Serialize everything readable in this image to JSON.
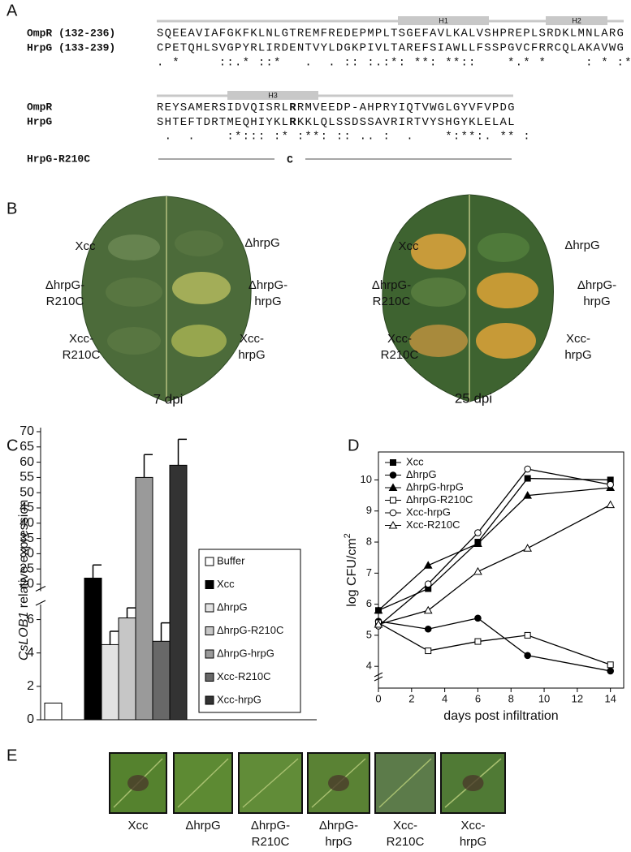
{
  "panel_labels": [
    "A",
    "B",
    "C",
    "D",
    "E"
  ],
  "panel_a": {
    "helices": [
      "H1",
      "H2",
      "H3"
    ],
    "block_1": {
      "ompr_label": "OmpR (132-236)",
      "ompr": "SQEEAVIAFGKFKLNLGTREMFREDEPMPLTSGEFAVLKALVSHPREPLSRDKLMNLARG",
      "hrpg_label": "HrpG (133-239)",
      "hrpg": "CPETQHLSVGPYRLIRDENTVYLDGKPIVLTAREFSIAWLLFSSPGVCFRRCQLAKAVWG",
      "conservation": ". *     ::.* ::*   .  . :: :.:*: **: **::    *.* *     : * :* : . *"
    },
    "block_2": {
      "ompr_label": "OmpR",
      "ompr": [
        "REYSAMERSIDVQISRL",
        "R",
        "RMVEEDP-AHPRYIQTVWGLGYVFVPDG"
      ],
      "hrpg_label": "HrpG",
      "hrpg": [
        "SHTEFTDRTMEQHIYKL",
        "R",
        "KKLQLSSDSSAVRIRTVYSHGYKLELAL"
      ],
      "conservation": " .  .    :*::: :* :**: :: .. :  .    *:**:. ** :"
    },
    "mutant_label": "HrpG-R210C",
    "mutant_residue": "C"
  },
  "panel_b": {
    "leaves": [
      {
        "caption": "7 dpi",
        "labels": [
          [
            "Xcc"
          ],
          [
            "ΔhrpG"
          ],
          [
            "ΔhrpG-",
            "R210C"
          ],
          [
            "ΔhrpG-",
            "hrpG"
          ],
          [
            "Xcc-",
            "R210C"
          ],
          [
            "Xcc-",
            "hrpG"
          ]
        ]
      },
      {
        "caption": "25 dpi",
        "labels": [
          [
            "Xcc"
          ],
          [
            "ΔhrpG"
          ],
          [
            "ΔhrpG-",
            "R210C"
          ],
          [
            "ΔhrpG-",
            "hrpG"
          ],
          [
            "Xcc-",
            "R210C"
          ],
          [
            "Xcc-",
            "hrpG"
          ]
        ]
      }
    ]
  },
  "chart_data": [
    {
      "type": "bar",
      "ylabel": [
        "CsLOB1",
        " relative expression"
      ],
      "categories": [
        "Buffer",
        "Xcc",
        "ΔhrpG",
        "ΔhrpG-R210C",
        "ΔhrpG-hrpG",
        "Xcc-R210C",
        "Xcc-hrpG"
      ],
      "values": [
        1,
        22,
        4.5,
        6.1,
        55,
        4.7,
        59
      ],
      "errors": [
        null,
        4.3,
        0.8,
        0.6,
        7.5,
        1.1,
        8.5
      ],
      "colors": [
        "#ffffff",
        "#000000",
        "#e2e2e2",
        "#c6c6c6",
        "#9a9a9a",
        "#686868",
        "#333333"
      ],
      "ylim": [
        0,
        70
      ],
      "y_break": [
        7,
        18
      ],
      "yticks": [
        0,
        2,
        4,
        6,
        20,
        25,
        30,
        35,
        40,
        45,
        50,
        55,
        60,
        65,
        70
      ],
      "legend": "right"
    },
    {
      "type": "line",
      "xlabel": "days post infiltration",
      "ylabel": "log CFU/cm",
      "ylabel_superscript": "2",
      "x": [
        0,
        3,
        6,
        9,
        14
      ],
      "xlim": [
        0,
        14.8
      ],
      "ylim": [
        3.3,
        10.9
      ],
      "xticks": [
        0,
        2,
        4,
        6,
        8,
        10,
        12,
        14
      ],
      "yticks": [
        4,
        5,
        6,
        7,
        8,
        9,
        10
      ],
      "y_axis_break": true,
      "legend": "upper left",
      "series": [
        {
          "name": "Xcc",
          "marker": "square",
          "filled": true,
          "color": "#000000",
          "values": [
            5.8,
            6.5,
            8.0,
            10.05,
            10.0
          ]
        },
        {
          "name": "ΔhrpG",
          "marker": "circle",
          "filled": true,
          "color": "#000000",
          "values": [
            5.45,
            5.2,
            5.55,
            4.35,
            3.85
          ]
        },
        {
          "name": "ΔhrpG-hrpG",
          "marker": "triangle",
          "filled": true,
          "color": "#000000",
          "values": [
            5.8,
            7.25,
            7.95,
            9.5,
            9.75
          ]
        },
        {
          "name": "ΔhrpG-R210C",
          "marker": "square",
          "filled": false,
          "color": "#000000",
          "values": [
            5.4,
            4.5,
            4.8,
            5.0,
            4.05
          ]
        },
        {
          "name": "Xcc-hrpG",
          "marker": "circle",
          "filled": false,
          "color": "#000000",
          "values": [
            5.3,
            6.65,
            8.3,
            10.35,
            9.85
          ]
        },
        {
          "name": "Xcc-R210C",
          "marker": "triangle",
          "filled": false,
          "color": "#000000",
          "values": [
            5.35,
            5.8,
            7.05,
            7.8,
            9.2
          ]
        }
      ]
    }
  ],
  "panel_e": {
    "labels": [
      [
        "Xcc"
      ],
      [
        "ΔhrpG"
      ],
      [
        "ΔhrpG-",
        "R210C"
      ],
      [
        "ΔhrpG-",
        "hrpG"
      ],
      [
        "Xcc-",
        "R210C"
      ],
      [
        "Xcc-",
        "hrpG"
      ]
    ]
  }
}
